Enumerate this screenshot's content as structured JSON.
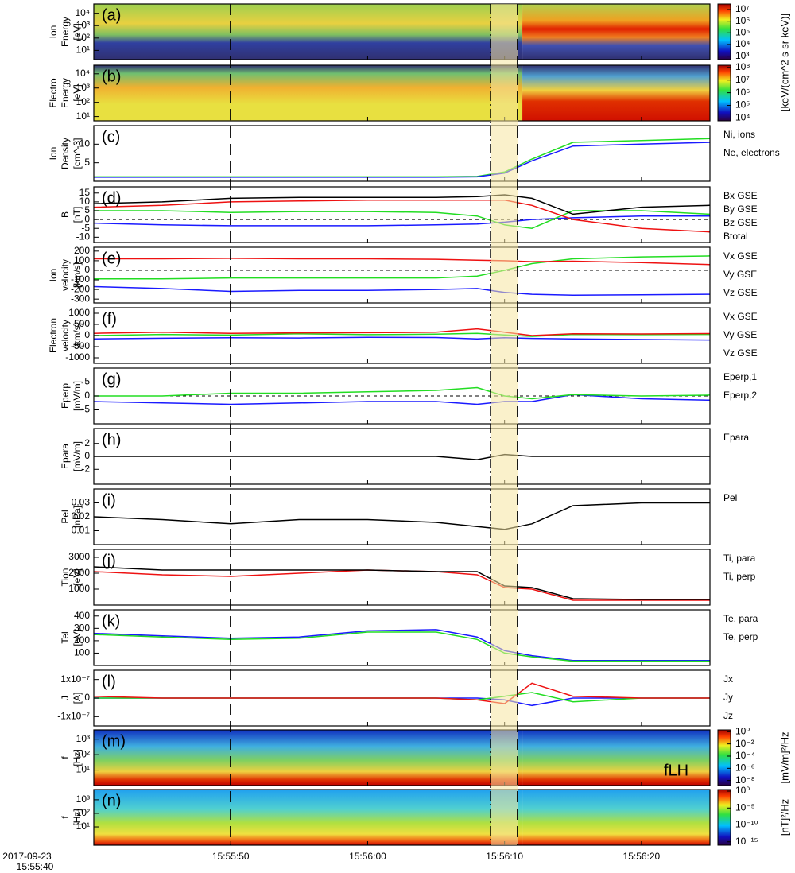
{
  "time_axis": {
    "xlim": [
      0,
      45
    ],
    "xticks": [
      {
        "value": 10,
        "label": "15:55:50"
      },
      {
        "value": 20,
        "label": "15:56:00"
      },
      {
        "value": 30,
        "label": "15:56:10"
      },
      {
        "value": 40,
        "label": "15:56:20"
      }
    ],
    "start_label": [
      "2017-09-23",
      "15:55:40"
    ]
  },
  "chart_data": [
    {
      "type": "spectrogram",
      "label": "(a)",
      "ylabel": [
        "Ion",
        "Energy",
        "[eV]"
      ],
      "log": true,
      "ylim": [
        1.8,
        56000
      ],
      "yticks": [
        {
          "value": 10000,
          "label": "10⁴"
        },
        {
          "value": 1000,
          "label": "10³"
        },
        {
          "value": 100,
          "label": "10²"
        },
        {
          "value": 10,
          "label": "10¹"
        }
      ],
      "colorbar": {
        "log": true,
        "clim": [
          500,
          30000000
        ],
        "ticks": [
          {
            "value": 10000000,
            "label": "10⁷"
          },
          {
            "value": 1000000,
            "label": "10⁶"
          },
          {
            "value": 100000,
            "label": "10⁵"
          },
          {
            "value": 10000,
            "label": "10⁴"
          },
          {
            "value": 1000,
            "label": "10³"
          }
        ],
        "label": "[keV/(cm^2 s sr keV)]"
      }
    },
    {
      "type": "spectrogram",
      "label": "(b)",
      "ylabel": [
        "Electro",
        "Energy",
        "[eV]"
      ],
      "log": true,
      "ylim": [
        5,
        40000
      ],
      "yticks": [
        {
          "value": 10000,
          "label": "10⁴"
        },
        {
          "value": 1000,
          "label": "10³"
        },
        {
          "value": 100,
          "label": "10²"
        },
        {
          "value": 10,
          "label": "10¹"
        }
      ],
      "colorbar": {
        "log": true,
        "clim": [
          6000,
          150000000
        ],
        "ticks": [
          {
            "value": 100000000,
            "label": "10⁸"
          },
          {
            "value": 10000000,
            "label": "10⁷"
          },
          {
            "value": 1000000,
            "label": "10⁶"
          },
          {
            "value": 100000,
            "label": "10⁵"
          },
          {
            "value": 10000,
            "label": "10⁴"
          }
        ]
      }
    },
    {
      "type": "line",
      "label": "(c)",
      "ylabel": [
        "Ion",
        "Density",
        "[cm^-3]"
      ],
      "ylim": [
        0,
        15
      ],
      "yticks": [
        5,
        10
      ],
      "x": [
        0,
        5,
        10,
        15,
        20,
        25,
        28,
        30,
        32,
        35,
        40,
        45
      ],
      "series": [
        {
          "name": "Ni, ions",
          "color": "#22dd22",
          "values": [
            1.2,
            1.2,
            1.2,
            1.2,
            1.2,
            1.2,
            1.3,
            2.5,
            6,
            10.5,
            11,
            11.5
          ]
        },
        {
          "name": "Ne, electrons",
          "color": "#1a1aff",
          "values": [
            1.1,
            1.1,
            1.1,
            1.1,
            1.1,
            1.1,
            1.2,
            2.2,
            5.5,
            9.5,
            10,
            10.5
          ]
        }
      ]
    },
    {
      "type": "line",
      "label": "(d)",
      "ylabel": [
        "B",
        "[nT]"
      ],
      "ylim": [
        -13,
        18.5
      ],
      "yticks": [
        15,
        10,
        5,
        0,
        -5,
        -10
      ],
      "zero_line": true,
      "x": [
        0,
        5,
        10,
        15,
        20,
        25,
        28,
        30,
        32,
        35,
        40,
        45
      ],
      "series": [
        {
          "name": "Bx GSE",
          "color": "#1a1aff",
          "values": [
            -2,
            -3,
            -3.5,
            -3.5,
            -3.5,
            -3,
            -2.5,
            -1.5,
            0,
            1,
            2,
            2
          ]
        },
        {
          "name": "By GSE",
          "color": "#22dd22",
          "values": [
            5,
            5,
            4,
            4.5,
            4.5,
            4,
            2,
            -3,
            -5,
            5,
            5,
            3
          ]
        },
        {
          "name": "Bz GSE",
          "color": "#ee1111",
          "values": [
            7,
            8,
            10,
            10.5,
            11,
            11,
            11,
            11,
            8,
            0,
            -5,
            -7
          ]
        },
        {
          "name": "Btotal",
          "color": "#000000",
          "values": [
            9,
            10,
            12,
            12.5,
            12.5,
            12.5,
            13,
            14,
            12,
            3,
            7,
            8
          ]
        }
      ]
    },
    {
      "type": "line",
      "label": "(e)",
      "ylabel": [
        "Ion",
        "velocity",
        "[km/s]"
      ],
      "ylim": [
        -340,
        240
      ],
      "yticks": [
        200,
        100,
        0,
        -100,
        -200,
        -300
      ],
      "zero_line": true,
      "x": [
        0,
        5,
        10,
        15,
        20,
        25,
        28,
        30,
        32,
        35,
        40,
        45
      ],
      "series": [
        {
          "name": "Vx GSE",
          "color": "#1a1aff",
          "values": [
            -170,
            -190,
            -220,
            -210,
            -210,
            -200,
            -190,
            -230,
            -250,
            -260,
            -255,
            -250
          ]
        },
        {
          "name": "Vy GSE",
          "color": "#22dd22",
          "values": [
            -90,
            -90,
            -80,
            -80,
            -80,
            -80,
            -60,
            0,
            70,
            120,
            140,
            150
          ]
        },
        {
          "name": "Vz GSE",
          "color": "#ee1111",
          "values": [
            120,
            120,
            125,
            120,
            120,
            115,
            105,
            100,
            90,
            95,
            80,
            60
          ]
        }
      ]
    },
    {
      "type": "line",
      "label": "(f)",
      "ylabel": [
        "Electron",
        "velocity",
        "[km/s]"
      ],
      "ylim": [
        -1250,
        1250
      ],
      "yticks": [
        1000,
        500,
        0,
        -500,
        -1000
      ],
      "x": [
        0,
        5,
        10,
        15,
        20,
        25,
        28,
        30,
        32,
        35,
        40,
        45
      ],
      "series": [
        {
          "name": "Vx GSE",
          "color": "#1a1aff",
          "values": [
            -150,
            -120,
            -100,
            -110,
            -80,
            -90,
            -150,
            -100,
            -130,
            -150,
            -180,
            -200
          ]
        },
        {
          "name": "Vy GSE",
          "color": "#22dd22",
          "values": [
            0,
            50,
            20,
            80,
            40,
            60,
            100,
            30,
            -40,
            50,
            40,
            50
          ]
        },
        {
          "name": "Vz GSE",
          "color": "#ee1111",
          "values": [
            100,
            150,
            100,
            120,
            130,
            150,
            300,
            150,
            0,
            80,
            70,
            90
          ]
        }
      ]
    },
    {
      "type": "line",
      "label": "(g)",
      "ylabel": [
        "Eperp",
        "[mV/m]"
      ],
      "ylim": [
        -10,
        10
      ],
      "yticks": [
        5,
        0,
        -5
      ],
      "zero_line": true,
      "x": [
        0,
        5,
        10,
        15,
        20,
        25,
        28,
        30,
        32,
        35,
        40,
        45
      ],
      "series": [
        {
          "name": "Eperp,1",
          "color": "#1a1aff",
          "values": [
            -2,
            -2.5,
            -3,
            -2.5,
            -2,
            -2,
            -3,
            -2,
            -2,
            0.5,
            -1,
            -1.5
          ]
        },
        {
          "name": "Eperp,2",
          "color": "#22dd22",
          "values": [
            0,
            0,
            1,
            1,
            1.5,
            2,
            3,
            0,
            -1,
            0.5,
            0,
            0.3
          ]
        }
      ]
    },
    {
      "type": "line",
      "label": "(h)",
      "ylabel": [
        "Epara",
        "[mV/m]"
      ],
      "ylim": [
        -4.3,
        4.3
      ],
      "yticks": [
        2,
        0,
        -2
      ],
      "x": [
        0,
        5,
        10,
        15,
        20,
        25,
        28,
        30,
        32,
        35,
        40,
        45
      ],
      "series": [
        {
          "name": "Epara",
          "color": "#000000",
          "values": [
            0,
            0,
            0,
            0,
            0,
            0,
            -0.5,
            0.3,
            0,
            0,
            0,
            0
          ]
        }
      ]
    },
    {
      "type": "line",
      "label": "(i)",
      "ylabel": [
        "Pel",
        "[nPa]"
      ],
      "ylim": [
        0,
        0.04
      ],
      "yticks": [
        0.03,
        0.02,
        0.01
      ],
      "x": [
        0,
        5,
        10,
        15,
        20,
        25,
        28,
        30,
        32,
        35,
        40,
        45
      ],
      "series": [
        {
          "name": "Pel",
          "color": "#000000",
          "values": [
            0.02,
            0.018,
            0.015,
            0.018,
            0.018,
            0.016,
            0.013,
            0.011,
            0.015,
            0.028,
            0.03,
            0.03
          ]
        }
      ]
    },
    {
      "type": "line",
      "label": "(j)",
      "ylabel": [
        "Tion",
        "[eV]"
      ],
      "ylim": [
        0,
        3500
      ],
      "yticks": [
        3000,
        2000,
        1000
      ],
      "x": [
        0,
        5,
        10,
        15,
        20,
        25,
        28,
        30,
        32,
        35,
        40,
        45
      ],
      "series": [
        {
          "name": "Ti, para",
          "color": "#ee1111",
          "values": [
            2100,
            1900,
            1800,
            2000,
            2200,
            2100,
            1900,
            1100,
            1000,
            300,
            300,
            300
          ]
        },
        {
          "name": "Ti, perp",
          "color": "#000000",
          "values": [
            2400,
            2200,
            2200,
            2200,
            2200,
            2100,
            2100,
            1200,
            1100,
            400,
            350,
            350
          ]
        }
      ]
    },
    {
      "type": "line",
      "label": "(k)",
      "ylabel": [
        "Tel",
        "[eV]"
      ],
      "ylim": [
        0,
        450
      ],
      "yticks": [
        400,
        300,
        200,
        100
      ],
      "x": [
        0,
        5,
        10,
        15,
        20,
        25,
        28,
        30,
        32,
        35,
        40,
        45
      ],
      "series": [
        {
          "name": "Te, para",
          "color": "#1a1aff",
          "values": [
            260,
            240,
            220,
            230,
            280,
            290,
            230,
            120,
            80,
            40,
            40,
            40
          ]
        },
        {
          "name": "Te, perp",
          "color": "#22dd22",
          "values": [
            250,
            230,
            210,
            220,
            270,
            270,
            210,
            100,
            70,
            35,
            35,
            35
          ]
        }
      ]
    },
    {
      "type": "line",
      "label": "(l)",
      "ylabel": [
        "J",
        "[A]"
      ],
      "ylim": [
        -1.5e-07,
        1.5e-07
      ],
      "yticks": [
        {
          "value": 1e-07,
          "label": "1x10⁻⁷"
        },
        0,
        {
          "value": -1e-07,
          "label": "-1x10⁻⁷"
        }
      ],
      "x": [
        0,
        5,
        10,
        15,
        20,
        25,
        28,
        30,
        32,
        35,
        40,
        45
      ],
      "series": [
        {
          "name": "Jx",
          "color": "#1a1aff",
          "values": [
            0,
            0,
            0,
            0,
            0,
            0,
            0,
            -1e-08,
            -4e-08,
            0,
            0,
            0
          ]
        },
        {
          "name": "Jy",
          "color": "#22dd22",
          "values": [
            0,
            0,
            0,
            0,
            0,
            0,
            -1e-08,
            1e-08,
            3e-08,
            -2e-08,
            0,
            0
          ]
        },
        {
          "name": "Jz",
          "color": "#ee1111",
          "values": [
            1e-08,
            0,
            0,
            0,
            0,
            0,
            -1e-08,
            -3e-08,
            8e-08,
            1e-08,
            0,
            0
          ]
        }
      ]
    },
    {
      "type": "spectrogram",
      "label": "(m)",
      "ylabel": [
        "f",
        "[Hz]"
      ],
      "log": true,
      "ylim": [
        1,
        4000
      ],
      "yticks": [
        {
          "value": 1000,
          "label": "10³"
        },
        {
          "value": 100,
          "label": "10²"
        },
        {
          "value": 10,
          "label": "10¹"
        }
      ],
      "annotation": "fLH",
      "colorbar": {
        "log": true,
        "clim": [
          1.5e-09,
          2
        ],
        "ticks": [
          {
            "value": 1,
            "label": "10⁰"
          },
          {
            "value": 0.01,
            "label": "10⁻²"
          },
          {
            "value": 0.0001,
            "label": "10⁻⁴"
          },
          {
            "value": 1e-06,
            "label": "10⁻⁶"
          },
          {
            "value": 1e-08,
            "label": "10⁻⁸"
          }
        ],
        "label": "[mV/m]²/Hz"
      }
    },
    {
      "type": "spectrogram",
      "label": "(n)",
      "ylabel": [
        "f",
        "[Hz]"
      ],
      "log": true,
      "ylim": [
        0.45,
        5700
      ],
      "yticks": [
        {
          "value": 1000,
          "label": "10³"
        },
        {
          "value": 100,
          "label": "10²"
        },
        {
          "value": 10,
          "label": "10¹"
        }
      ],
      "colorbar": {
        "log": true,
        "clim": [
          1e-16,
          3
        ],
        "ticks": [
          {
            "value": 1,
            "label": "10⁰"
          },
          {
            "value": 1e-05,
            "label": "10⁻⁵"
          },
          {
            "value": 1e-10,
            "label": "10⁻¹⁰"
          },
          {
            "value": 1e-15,
            "label": "10⁻¹⁵"
          }
        ],
        "label": "[nT]²/Hz"
      }
    }
  ]
}
